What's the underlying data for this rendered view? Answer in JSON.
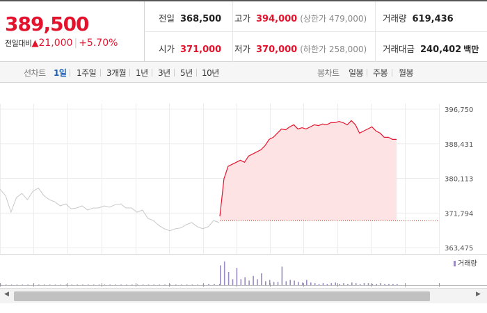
{
  "quote": {
    "price": "389,500",
    "change_label": "전일대비",
    "change_arrow": "▲",
    "change": "21,000",
    "change_pct": "+5.70%"
  },
  "stats": {
    "prev_close": {
      "label": "전일",
      "value": "368,500"
    },
    "high": {
      "label": "고가",
      "value": "394,000",
      "sub": "(상한가 479,000)"
    },
    "volume": {
      "label": "거래량",
      "value": "619,436"
    },
    "open": {
      "label": "시가",
      "value": "371,000"
    },
    "low": {
      "label": "저가",
      "value": "370,000",
      "sub": "(하한가 258,000)"
    },
    "turnover": {
      "label": "거래대금",
      "value": "240,402",
      "unit": "백만"
    }
  },
  "tabs": {
    "line_head": "선차트",
    "line": [
      "1일",
      "1주일",
      "3개월",
      "1년",
      "3년",
      "5년",
      "10년"
    ],
    "candle_head": "봉차트",
    "candle": [
      "일봉",
      "주봉",
      "월봉"
    ],
    "selected": "1일"
  },
  "colors": {
    "up": "#e4132d",
    "fill": "#fde3e3",
    "prev_line": "#c8c8c8",
    "volume": "#9a8cc2",
    "tab_selected": "#1a5fb4"
  },
  "chart_data": {
    "type": "line",
    "ylim": [
      363475,
      396750
    ],
    "y_ticks": [
      "396,750",
      "388,431",
      "380,113",
      "371,794",
      "363,475"
    ],
    "baseline": 370000,
    "previous_day": {
      "values": [
        377500,
        376000,
        372000,
        375500,
        376500,
        375000,
        377000,
        377800,
        376000,
        375000,
        374500,
        373500,
        374000,
        372800,
        373000,
        373500,
        372500,
        373000,
        373000,
        373500,
        373200,
        373800,
        374000,
        373000,
        373000,
        372000,
        372500,
        370500,
        370000,
        368800,
        368000,
        367500,
        368000,
        368200,
        369000,
        369500,
        368500,
        368000,
        368500,
        370000,
        369500
      ]
    },
    "today": {
      "values": [
        371000,
        380000,
        383000,
        383500,
        384000,
        384500,
        384000,
        385500,
        386000,
        386500,
        387000,
        388000,
        389500,
        390000,
        391000,
        392000,
        391800,
        392500,
        393000,
        392000,
        392300,
        392000,
        392500,
        393000,
        392800,
        393200,
        393000,
        393500,
        393500,
        393800,
        393500,
        393000,
        394000,
        393000,
        391000,
        391500,
        392000,
        392500,
        391500,
        391000,
        390000,
        390000,
        389500,
        389500
      ]
    },
    "volume_series_label": "거래량",
    "volume": {
      "previous_day": [
        1,
        1,
        1,
        1,
        1,
        1,
        1,
        1,
        1,
        1,
        1,
        1,
        1,
        1,
        1,
        1,
        1,
        1,
        1,
        1,
        1,
        1,
        1,
        1,
        1,
        1,
        1,
        1,
        1,
        1,
        1,
        1,
        1,
        1,
        1,
        1,
        1,
        1,
        2,
        2,
        2
      ],
      "today": [
        30,
        36,
        20,
        9,
        26,
        9,
        12,
        7,
        14,
        9,
        18,
        6,
        8,
        5,
        5,
        28,
        6,
        8,
        7,
        5,
        4,
        8,
        4,
        3,
        2,
        3,
        2,
        3,
        4,
        2,
        3,
        2,
        4,
        3,
        2,
        3,
        3,
        2,
        2,
        3,
        2,
        2,
        2,
        2
      ]
    }
  }
}
